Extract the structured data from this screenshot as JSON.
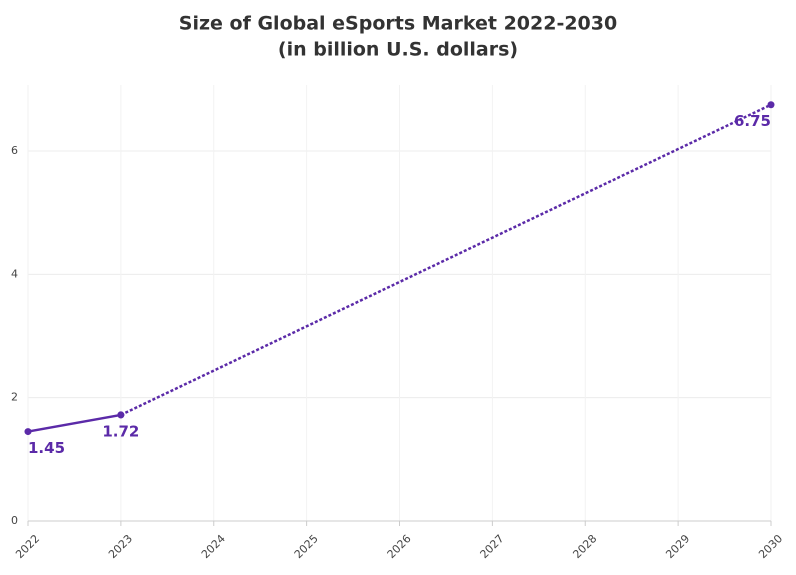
{
  "chart_data": {
    "type": "line",
    "title": "Size of Global eSports Market 2022-2030",
    "subtitle": "(in billion U.S. dollars)",
    "series": [
      {
        "x": [
          2022,
          2023
        ],
        "values": [
          1.45,
          1.72
        ],
        "color": "#5b2aa8",
        "dash": "solid"
      },
      {
        "x": [
          2023,
          2030
        ],
        "values": [
          1.72,
          6.75
        ],
        "color": "#5b2aa8",
        "dash": "dotted"
      }
    ],
    "xlim": [
      2022,
      2030
    ],
    "xticks": [
      2022,
      2023,
      2024,
      2025,
      2026,
      2027,
      2028,
      2029,
      2030
    ],
    "ylim": [
      0,
      7.07
    ],
    "yticks": [
      0,
      2,
      4,
      6
    ],
    "grid": true
  }
}
